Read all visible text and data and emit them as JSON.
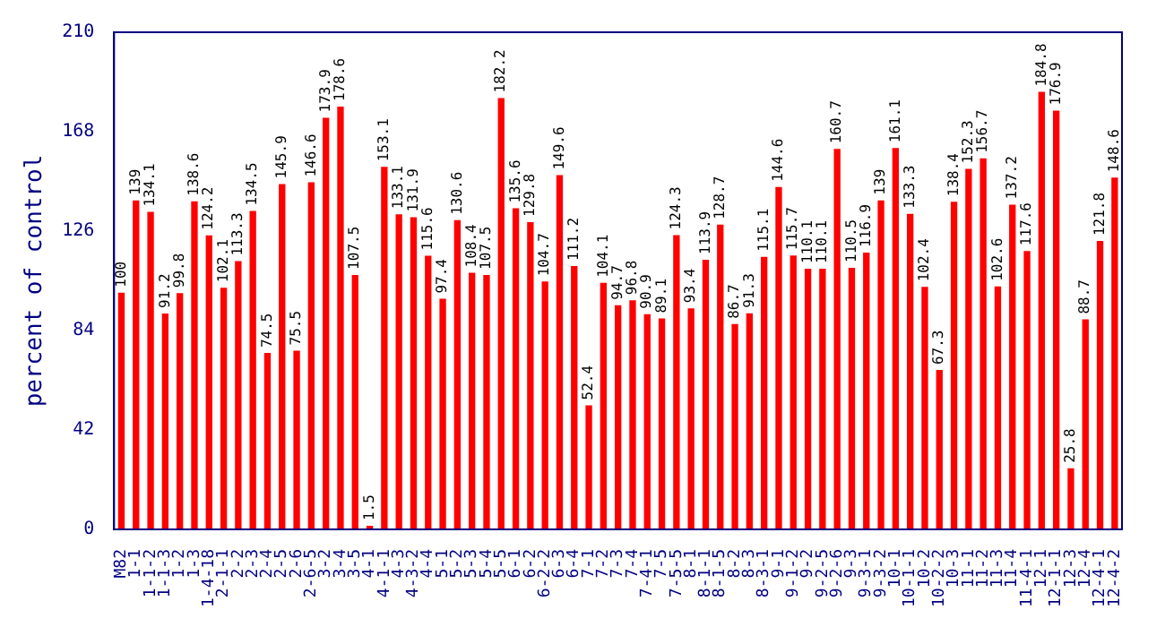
{
  "chart_data": {
    "type": "bar",
    "ylabel": "percent of control",
    "categories": [
      "M82",
      "1-1",
      "1-1-2",
      "1-1-3",
      "1-2",
      "1-3",
      "1-4-18",
      "2-1-1",
      "2-2",
      "2-3",
      "2-4",
      "2-5",
      "2-6",
      "2-6-5",
      "3-2",
      "3-4",
      "3-5",
      "4-1",
      "4-1-1",
      "4-3",
      "4-3-2",
      "4-4",
      "5-1",
      "5-2",
      "5-3",
      "5-4",
      "5-5",
      "6-1",
      "6-2",
      "6-2-2",
      "6-3",
      "6-4",
      "7-1",
      "7-2",
      "7-3",
      "7-4",
      "7-4-1",
      "7-5",
      "7-5-5",
      "8-1",
      "8-1-1",
      "8-1-5",
      "8-2",
      "8-3",
      "8-3-1",
      "9-1",
      "9-1-2",
      "9-2",
      "9-2-5",
      "9-2-6",
      "9-3",
      "9-3-1",
      "9-3-2",
      "10-1",
      "10-1-1",
      "10-2",
      "10-2-2",
      "10-3",
      "11-1",
      "11-2",
      "11-3",
      "11-4",
      "11-4-1",
      "12-1",
      "12-1-1",
      "12-3",
      "12-4",
      "12-4-1",
      "12-4-2"
    ],
    "values": [
      100,
      139,
      134.1,
      91.2,
      99.8,
      138.6,
      124.2,
      102.1,
      113.3,
      134.5,
      74.5,
      145.9,
      75.5,
      146.6,
      173.9,
      178.6,
      107.5,
      1.5,
      153.1,
      133.1,
      131.9,
      115.6,
      97.4,
      130.6,
      108.4,
      107.5,
      182.2,
      135.6,
      129.8,
      104.7,
      149.6,
      111.2,
      52.4,
      104.1,
      94.7,
      96.8,
      90.9,
      89.1,
      124.3,
      93.4,
      113.9,
      128.7,
      86.7,
      91.3,
      115.1,
      144.6,
      115.7,
      110.1,
      110.1,
      160.7,
      110.5,
      116.9,
      139,
      161.1,
      133.3,
      102.4,
      67.3,
      138.4,
      152.3,
      156.7,
      102.6,
      137.2,
      117.6,
      184.8,
      176.9,
      25.8,
      88.7,
      121.8,
      148.6
    ],
    "color": "#ff0000",
    "data_labels": true,
    "ylim": [
      0,
      210
    ],
    "yticks": [
      0,
      42,
      84,
      126,
      168,
      210
    ],
    "grid": false,
    "legend": false
  }
}
